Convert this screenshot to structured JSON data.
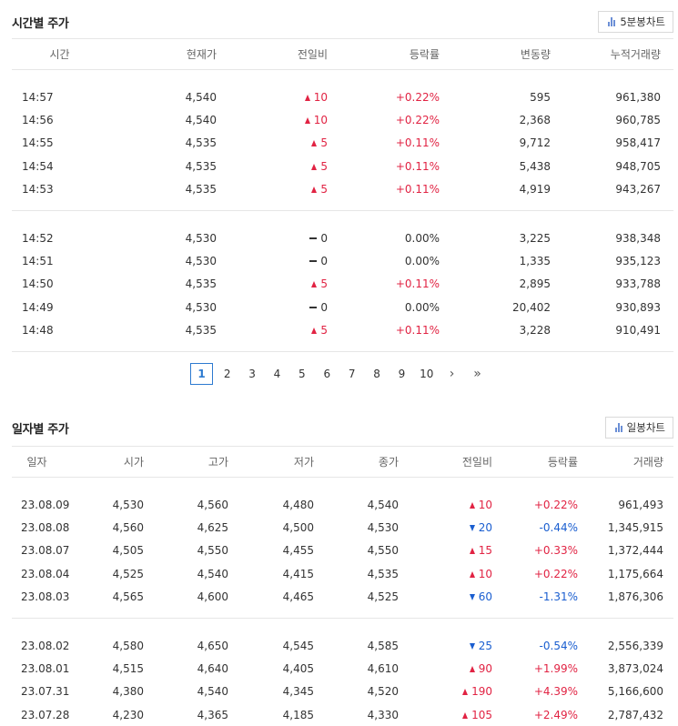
{
  "time_section": {
    "title": "시간별 주가",
    "chart_button": "5분봉차트",
    "headers": [
      "시간",
      "현재가",
      "전일비",
      "등락률",
      "변동량",
      "누적거래량"
    ],
    "groups": [
      [
        {
          "time": "14:57",
          "price": "4,540",
          "dir": "up",
          "change": "10",
          "rate": "+0.22%",
          "volume": "595",
          "cum": "961,380"
        },
        {
          "time": "14:56",
          "price": "4,540",
          "dir": "up",
          "change": "10",
          "rate": "+0.22%",
          "volume": "2,368",
          "cum": "960,785"
        },
        {
          "time": "14:55",
          "price": "4,535",
          "dir": "up",
          "change": "5",
          "rate": "+0.11%",
          "volume": "9,712",
          "cum": "958,417"
        },
        {
          "time": "14:54",
          "price": "4,535",
          "dir": "up",
          "change": "5",
          "rate": "+0.11%",
          "volume": "5,438",
          "cum": "948,705"
        },
        {
          "time": "14:53",
          "price": "4,535",
          "dir": "up",
          "change": "5",
          "rate": "+0.11%",
          "volume": "4,919",
          "cum": "943,267"
        }
      ],
      [
        {
          "time": "14:52",
          "price": "4,530",
          "dir": "flat",
          "change": "0",
          "rate": "0.00%",
          "volume": "3,225",
          "cum": "938,348"
        },
        {
          "time": "14:51",
          "price": "4,530",
          "dir": "flat",
          "change": "0",
          "rate": "0.00%",
          "volume": "1,335",
          "cum": "935,123"
        },
        {
          "time": "14:50",
          "price": "4,535",
          "dir": "up",
          "change": "5",
          "rate": "+0.11%",
          "volume": "2,895",
          "cum": "933,788"
        },
        {
          "time": "14:49",
          "price": "4,530",
          "dir": "flat",
          "change": "0",
          "rate": "0.00%",
          "volume": "20,402",
          "cum": "930,893"
        },
        {
          "time": "14:48",
          "price": "4,535",
          "dir": "up",
          "change": "5",
          "rate": "+0.11%",
          "volume": "3,228",
          "cum": "910,491"
        }
      ]
    ]
  },
  "pagination": {
    "current": "1",
    "pages": [
      "1",
      "2",
      "3",
      "4",
      "5",
      "6",
      "7",
      "8",
      "9",
      "10"
    ],
    "next": "›",
    "last": "»"
  },
  "daily_section": {
    "title": "일자별 주가",
    "chart_button": "일봉차트",
    "headers": [
      "일자",
      "시가",
      "고가",
      "저가",
      "종가",
      "전일비",
      "등락률",
      "거래량"
    ],
    "groups": [
      [
        {
          "date": "23.08.09",
          "open": "4,530",
          "high": "4,560",
          "low": "4,480",
          "close": "4,540",
          "dir": "up",
          "change": "10",
          "rate": "+0.22%",
          "volume": "961,493"
        },
        {
          "date": "23.08.08",
          "open": "4,560",
          "high": "4,625",
          "low": "4,500",
          "close": "4,530",
          "dir": "down",
          "change": "20",
          "rate": "-0.44%",
          "volume": "1,345,915"
        },
        {
          "date": "23.08.07",
          "open": "4,505",
          "high": "4,550",
          "low": "4,455",
          "close": "4,550",
          "dir": "up",
          "change": "15",
          "rate": "+0.33%",
          "volume": "1,372,444"
        },
        {
          "date": "23.08.04",
          "open": "4,525",
          "high": "4,540",
          "low": "4,415",
          "close": "4,535",
          "dir": "up",
          "change": "10",
          "rate": "+0.22%",
          "volume": "1,175,664"
        },
        {
          "date": "23.08.03",
          "open": "4,565",
          "high": "4,600",
          "low": "4,465",
          "close": "4,525",
          "dir": "down",
          "change": "60",
          "rate": "-1.31%",
          "volume": "1,876,306"
        }
      ],
      [
        {
          "date": "23.08.02",
          "open": "4,580",
          "high": "4,650",
          "low": "4,545",
          "close": "4,585",
          "dir": "down",
          "change": "25",
          "rate": "-0.54%",
          "volume": "2,556,339"
        },
        {
          "date": "23.08.01",
          "open": "4,515",
          "high": "4,640",
          "low": "4,405",
          "close": "4,610",
          "dir": "up",
          "change": "90",
          "rate": "+1.99%",
          "volume": "3,873,024"
        },
        {
          "date": "23.07.31",
          "open": "4,380",
          "high": "4,540",
          "low": "4,345",
          "close": "4,520",
          "dir": "up",
          "change": "190",
          "rate": "+4.39%",
          "volume": "5,166,600"
        },
        {
          "date": "23.07.28",
          "open": "4,230",
          "high": "4,365",
          "low": "4,185",
          "close": "4,330",
          "dir": "up",
          "change": "105",
          "rate": "+2.49%",
          "volume": "2,787,432"
        }
      ]
    ]
  },
  "colors": {
    "up": "#e12343",
    "down": "#1a5ed0",
    "accent": "#2d7ad0"
  }
}
